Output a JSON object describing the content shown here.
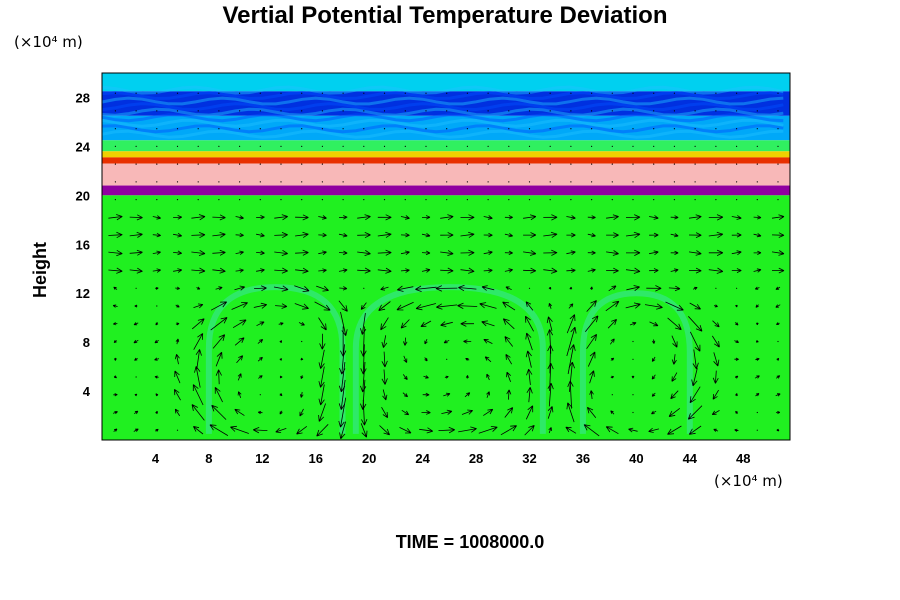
{
  "chart_data": {
    "type": "heatmap",
    "title": "Vertial Potential Temperature Deviation",
    "ylabel": "Height",
    "x_unit": "(×10⁴ m)",
    "y_unit": "(×10⁴ m)",
    "xlim": [
      0,
      51.5
    ],
    "ylim": [
      0,
      30
    ],
    "x_ticks": [
      4,
      8,
      12,
      16,
      20,
      24,
      28,
      32,
      36,
      40,
      44,
      48
    ],
    "y_ticks": [
      4,
      8,
      12,
      16,
      20,
      24,
      28
    ],
    "grid": false,
    "layers": [
      {
        "from": 28.5,
        "to": 30,
        "color": "#00d0f0"
      },
      {
        "from": 26.5,
        "to": 28.5,
        "color": "#0030e0"
      },
      {
        "from": 24.5,
        "to": 26.5,
        "color": "#00a8f8"
      },
      {
        "from": 23.6,
        "to": 24.5,
        "color": "#30f060"
      },
      {
        "from": 23.1,
        "to": 23.6,
        "color": "#f0d000"
      },
      {
        "from": 22.6,
        "to": 23.1,
        "color": "#e83000"
      },
      {
        "from": 20.8,
        "to": 22.6,
        "color": "#f8b8b8"
      },
      {
        "from": 20.0,
        "to": 20.8,
        "color": "#9000a0"
      },
      {
        "from": 0,
        "to": 20.0,
        "color": "#20f020"
      }
    ],
    "circulation_cells": [
      {
        "x_from": 8,
        "x_to": 18,
        "y_top": 12.5,
        "direction": "clockwise"
      },
      {
        "x_from": 19,
        "x_to": 33,
        "y_top": 12.5,
        "direction": "counterclockwise"
      },
      {
        "x_from": 36,
        "x_to": 44,
        "y_top": 12,
        "direction": "clockwise"
      }
    ],
    "footer": {
      "label": "TIME =",
      "value": "1008000.0"
    }
  },
  "colors": {
    "surface": "#20f020",
    "arrow": "#000000"
  }
}
